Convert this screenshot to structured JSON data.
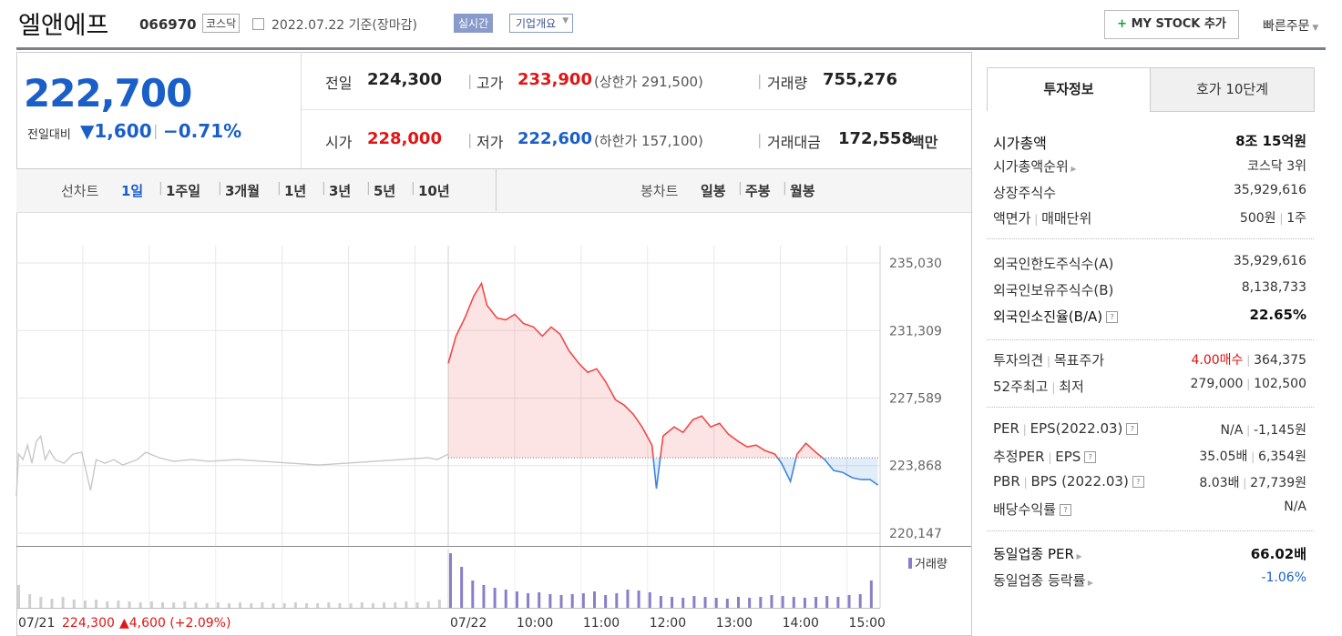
{
  "header": {
    "name": "엘앤에프",
    "code": "066970",
    "market": "코스닥",
    "date": "2022.07.22 기준(장마감)",
    "realtime": "실시간",
    "company": "기업개요",
    "mystock": "MY STOCK 추가",
    "quick": "빠른주문"
  },
  "quote": {
    "price": "222,700",
    "change_label": "전일대비",
    "change": "▼1,600",
    "change_rate": "−0.71%",
    "prev": {
      "label": "전일",
      "value": "224,300"
    },
    "high": {
      "label": "고가",
      "value": "233,900",
      "sub": "(상한가 291,500)"
    },
    "volume": {
      "label": "거래량",
      "value": "755,276"
    },
    "open": {
      "label": "시가",
      "value": "228,000"
    },
    "low": {
      "label": "저가",
      "value": "222,600",
      "sub": "(하한가 157,100)"
    },
    "amount": {
      "label": "거래대금",
      "value": "172,558",
      "unit": "백만"
    }
  },
  "toolbar": {
    "line_label": "선차트",
    "line_periods": [
      "1일",
      "1주일",
      "3개월",
      "1년",
      "3년",
      "5년",
      "10년"
    ],
    "candle_label": "봉차트",
    "candle_periods": [
      "일봉",
      "주봉",
      "월봉"
    ]
  },
  "chart_data": {
    "type": "line",
    "xlim": [
      0,
      780
    ],
    "xticks": [
      {
        "value": 0,
        "label": "07/21"
      },
      {
        "value": 390,
        "label": "07/22"
      },
      {
        "value": 450,
        "label": "10:00"
      },
      {
        "value": 510,
        "label": "11:00"
      },
      {
        "value": 570,
        "label": "12:00"
      },
      {
        "value": 630,
        "label": "13:00"
      },
      {
        "value": 690,
        "label": "14:00"
      },
      {
        "value": 750,
        "label": "15:00"
      }
    ],
    "xgrid": [
      60,
      120,
      180,
      240,
      300,
      360
    ],
    "ylim": [
      220147,
      235030
    ],
    "yticks": [
      {
        "value": 235030,
        "label": "235,030"
      },
      {
        "value": 231309,
        "label": "231,309"
      },
      {
        "value": 227589,
        "label": "227,589"
      },
      {
        "value": 223868,
        "label": "223,868"
      },
      {
        "value": 220147,
        "label": "220,147"
      }
    ],
    "grid": true,
    "baseline": 224300,
    "series": [
      {
        "color": "#c8c8c8",
        "x": [
          0,
          2,
          6,
          10,
          14,
          18,
          22,
          26,
          30,
          35,
          43,
          51,
          59,
          67,
          72,
          80,
          88,
          96,
          109,
          117,
          129,
          142,
          158,
          174,
          199,
          224,
          248,
          273,
          298,
          323,
          347,
          372,
          380,
          390
        ],
        "values": [
          222200,
          224500,
          224200,
          225000,
          224000,
          225200,
          225500,
          224200,
          224700,
          224200,
          224000,
          224500,
          224600,
          222500,
          224200,
          224000,
          224200,
          223900,
          224200,
          224600,
          224300,
          224100,
          224200,
          224100,
          224200,
          224100,
          224000,
          223900,
          224000,
          224100,
          224200,
          224300,
          224200,
          224500
        ]
      },
      {
        "color": "#f04848",
        "color_below": "#3f86e0",
        "x": [
          390,
          397,
          405,
          413,
          420,
          425,
          434,
          442,
          450,
          458,
          467,
          475,
          483,
          491,
          499,
          508,
          516,
          524,
          532,
          541,
          549,
          557,
          565,
          574,
          578,
          584,
          594,
          602,
          611,
          619,
          627,
          635,
          643,
          652,
          660,
          668,
          676,
          685,
          691,
          699,
          705,
          713,
          722,
          730,
          738,
          746,
          755,
          763,
          771,
          778
        ],
        "values": [
          229500,
          231000,
          232000,
          233200,
          233900,
          232700,
          232000,
          231900,
          232200,
          231700,
          231500,
          231000,
          231500,
          231100,
          230200,
          229500,
          229000,
          229200,
          228500,
          227500,
          227200,
          226700,
          226000,
          225000,
          222600,
          225500,
          226000,
          225700,
          226400,
          226600,
          226000,
          226200,
          225600,
          225200,
          224900,
          225000,
          224700,
          224500,
          224000,
          223000,
          224500,
          225100,
          224600,
          224200,
          223600,
          223500,
          223200,
          223100,
          223100,
          222800
        ]
      }
    ],
    "volume": {
      "name": "거래량",
      "color": "#8a7ec8",
      "prev_color": "#cfcfcf",
      "x": [
        0,
        10,
        20,
        30,
        40,
        50,
        60,
        70,
        80,
        90,
        100,
        110,
        120,
        130,
        140,
        150,
        160,
        170,
        180,
        190,
        200,
        210,
        220,
        230,
        240,
        250,
        260,
        270,
        280,
        290,
        300,
        310,
        320,
        330,
        340,
        350,
        360,
        370,
        380,
        390,
        400,
        410,
        420,
        430,
        440,
        450,
        460,
        470,
        480,
        490,
        500,
        510,
        520,
        530,
        540,
        550,
        560,
        570,
        580,
        590,
        600,
        610,
        620,
        630,
        640,
        650,
        660,
        670,
        680,
        690,
        700,
        710,
        720,
        730,
        740,
        750,
        760,
        770
      ],
      "values": [
        25000,
        15000,
        12000,
        10000,
        12000,
        9000,
        8000,
        9000,
        7000,
        8000,
        7000,
        6000,
        7000,
        6000,
        6000,
        7000,
        6000,
        5000,
        6000,
        5000,
        6000,
        5000,
        6000,
        5000,
        5000,
        6000,
        5000,
        5000,
        6000,
        5000,
        5000,
        6000,
        5000,
        6000,
        6000,
        7000,
        6000,
        7000,
        9000,
        60000,
        45000,
        30000,
        25000,
        22000,
        20000,
        18000,
        16000,
        17000,
        15000,
        14000,
        15000,
        16000,
        18000,
        14000,
        16000,
        20000,
        19000,
        17000,
        13000,
        12000,
        11000,
        13000,
        12000,
        11000,
        10000,
        12000,
        11000,
        12000,
        14000,
        13000,
        12000,
        11000,
        12000,
        13000,
        12000,
        14000,
        15000,
        30000
      ]
    },
    "prev_note": {
      "close": "224,300",
      "change": "▲4,600 (+2.09%)"
    }
  },
  "invest_info": {
    "tabs": [
      "투자정보",
      "호가 10단계"
    ],
    "groups": [
      [
        {
          "label": [
            "시가총액"
          ],
          "value": [
            "8조 15억원"
          ],
          "strong": true
        },
        {
          "label": [
            "시가총액순위"
          ],
          "value": [
            "코스닥 3위"
          ],
          "arrow": true
        },
        {
          "label": [
            "상장주식수"
          ],
          "value": [
            "35,929,616"
          ]
        },
        {
          "label": [
            "액면가",
            "매매단위"
          ],
          "value": [
            "500원",
            "1주"
          ]
        }
      ],
      [
        {
          "label": [
            "외국인한도주식수(A)"
          ],
          "value": [
            "35,929,616"
          ]
        },
        {
          "label": [
            "외국인보유주식수(B)"
          ],
          "value": [
            "8,138,733"
          ]
        },
        {
          "label": [
            "외국인소진율(B/A)"
          ],
          "value": [
            "22.65%"
          ],
          "help": true,
          "strong": true
        }
      ],
      [
        {
          "label": [
            "투자의견",
            "목표주가"
          ],
          "value": [
            "4.00매수",
            "364,375"
          ],
          "value_color": "#e01010"
        },
        {
          "label": [
            "52주최고",
            "최저"
          ],
          "value": [
            "279,000",
            "102,500"
          ]
        }
      ],
      [
        {
          "label": [
            "PER",
            "EPS(2022.03)"
          ],
          "value": [
            "N/A",
            "-1,145원"
          ],
          "help": true
        },
        {
          "label": [
            "추정PER",
            "EPS"
          ],
          "value": [
            "35.05배",
            "6,354원"
          ],
          "help": true
        },
        {
          "label": [
            "PBR",
            "BPS (2022.03)"
          ],
          "value": [
            "8.03배",
            "27,739원"
          ],
          "help": true
        },
        {
          "label": [
            "배당수익률"
          ],
          "value": [
            "N/A"
          ],
          "help": true
        }
      ],
      [
        {
          "label": [
            "동일업종 PER"
          ],
          "value": [
            "66.02배"
          ],
          "arrow": true,
          "strong": true
        },
        {
          "label": [
            "동일업종 등락률"
          ],
          "value": [
            "-1.06%"
          ],
          "arrow": true,
          "value_color": "#1a5fc8"
        }
      ]
    ]
  }
}
